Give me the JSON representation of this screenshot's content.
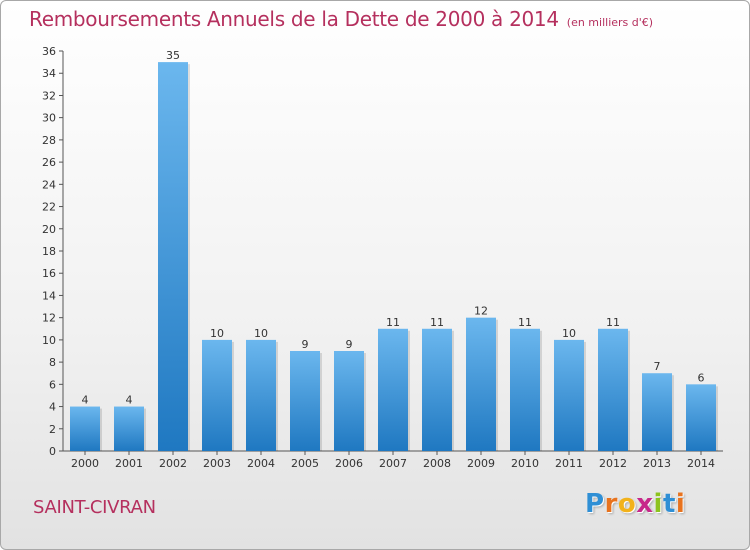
{
  "title": "Remboursements Annuels de la Dette de 2000 à 2014",
  "subtitle": "(en milliers d'€)",
  "commune": "SAINT-CIVRAN",
  "logo": {
    "letters": [
      "P",
      "r",
      "o",
      "x",
      "i",
      "t",
      "i"
    ],
    "colors": [
      "#2f8fd5",
      "#e8731e",
      "#f2b21b",
      "#c7288a",
      "#8dc31e",
      "#2f8fd5",
      "#e8731e"
    ]
  },
  "colors": {
    "title": "#b5305e",
    "bar_light": "#6bb7ee",
    "bar_dark": "#1f78c1",
    "axis": "#555555",
    "grid": "#cccccc"
  },
  "chart_data": {
    "type": "bar",
    "title": "Remboursements Annuels de la Dette de 2000 à 2014",
    "subtitle": "(en milliers d'€)",
    "categories": [
      "2000",
      "2001",
      "2002",
      "2003",
      "2004",
      "2005",
      "2006",
      "2007",
      "2008",
      "2009",
      "2010",
      "2011",
      "2012",
      "2013",
      "2014"
    ],
    "values": [
      4,
      4,
      35,
      10,
      10,
      9,
      9,
      11,
      11,
      12,
      11,
      10,
      11,
      7,
      6
    ],
    "ylim": [
      0,
      36
    ],
    "yticks": [
      0,
      2,
      4,
      6,
      8,
      10,
      12,
      14,
      16,
      18,
      20,
      22,
      24,
      26,
      28,
      30,
      32,
      34,
      36
    ],
    "grid": false,
    "legend": "none"
  }
}
